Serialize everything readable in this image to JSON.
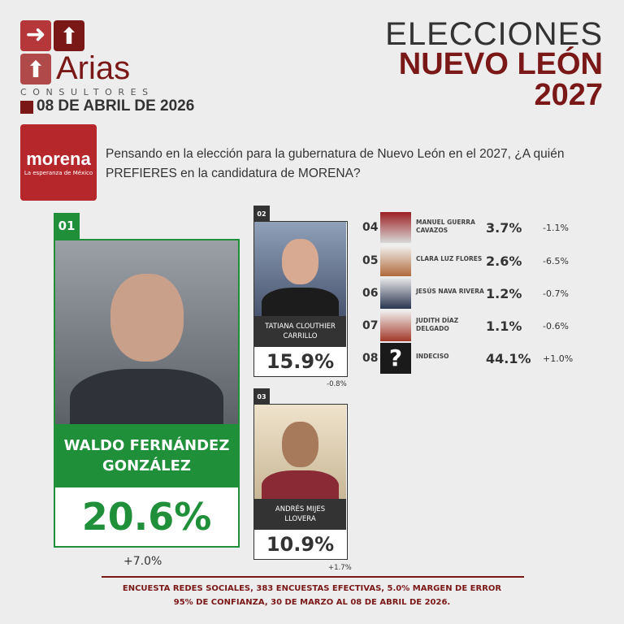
{
  "brand": {
    "name": "Arias",
    "sub": "CONSULTORES",
    "date": "08 DE ABRIL DE 2026",
    "colors": {
      "red": "#b5373a",
      "dark_red": "#7a1818"
    }
  },
  "title": {
    "line1": "ELECCIONES",
    "line2": "NUEVO LEÓN",
    "line3": "2027"
  },
  "party": {
    "name": "morena",
    "slogan": "La esperanza de México",
    "color": "#b5272b"
  },
  "question": "Pensando en la elección para la gubernatura de Nuevo León en el 2027,  ¿A quién PREFIERES en la candidatura de MORENA?",
  "top": [
    {
      "rank": "01",
      "name": "WALDO FERNÁNDEZ GONZÁLEZ",
      "pct": "20.6%",
      "change": "+7.0%",
      "color": "#1f8f3a"
    },
    {
      "rank": "02",
      "name": "TATIANA CLOUTHIER CARRILLO",
      "pct": "15.9%",
      "change": "-0.8%"
    },
    {
      "rank": "03",
      "name": "ANDRÉS MIJES LLOVERA",
      "pct": "10.9%",
      "change": "+1.7%"
    }
  ],
  "others": [
    {
      "rank": "04",
      "name": "MANUEL GUERRA CAVAZOS",
      "pct": "3.7%",
      "change": "-1.1%"
    },
    {
      "rank": "05",
      "name": "CLARA LUZ FLORES",
      "pct": "2.6%",
      "change": "-6.5%"
    },
    {
      "rank": "06",
      "name": "JESÚS NAVA RIVERA",
      "pct": "1.2%",
      "change": "-0.7%"
    },
    {
      "rank": "07",
      "name": "JUDITH DÍAZ DELGADO",
      "pct": "1.1%",
      "change": "-0.6%"
    },
    {
      "rank": "08",
      "name": "INDECISO",
      "pct": "44.1%",
      "change": "+1.0%",
      "icon": "question-icon"
    }
  ],
  "footer": {
    "line1": "ENCUESTA REDES SOCIALES, 383 ENCUESTAS EFECTIVAS, 5.0%  MARGEN DE ERROR",
    "line2": "95% DE CONFIANZA, 30 DE MARZO AL 08 DE ABRIL DE 2026."
  }
}
